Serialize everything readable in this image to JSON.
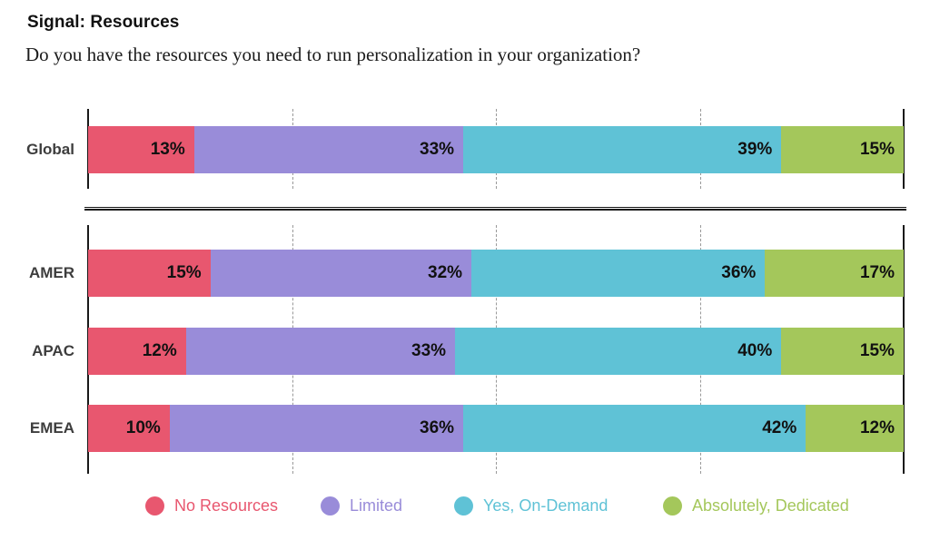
{
  "header": {
    "title": "Signal: Resources",
    "subtitle": "Do you have the resources you need to run personalization in your organization?"
  },
  "chart_data": {
    "type": "bar",
    "orientation": "horizontal",
    "stacked": true,
    "unit": "%",
    "xlim": [
      0,
      100
    ],
    "gridlines_pct": [
      25,
      50,
      75
    ],
    "grid_style": "dashed",
    "series": [
      "No Resources",
      "Limited",
      "Yes, On-Demand",
      "Absolutely, Dedicated"
    ],
    "series_colors": [
      "#E8576F",
      "#998CD9",
      "#5FC2D6",
      "#A4C75B"
    ],
    "sections": [
      {
        "name": "global",
        "rows": [
          {
            "category": "Global",
            "values": [
              13,
              33,
              39,
              15
            ]
          }
        ]
      },
      {
        "name": "regions",
        "rows": [
          {
            "category": "AMER",
            "values": [
              15,
              32,
              36,
              17
            ]
          },
          {
            "category": "APAC",
            "values": [
              12,
              33,
              40,
              15
            ]
          },
          {
            "category": "EMEA",
            "values": [
              10,
              36,
              42,
              12
            ]
          }
        ]
      }
    ]
  },
  "legend": {
    "items": [
      {
        "label": "No Resources",
        "color": "#E8576F"
      },
      {
        "label": "Limited",
        "color": "#998CD9"
      },
      {
        "label": "Yes, On-Demand",
        "color": "#5FC2D6"
      },
      {
        "label": "Absolutely, Dedicated",
        "color": "#A4C75B"
      }
    ]
  },
  "styles": {
    "axis_color": "#1a1a1a",
    "gridline_color": "#999999",
    "value_label_color": "#111111",
    "category_label_color": "#3d3d3d"
  }
}
